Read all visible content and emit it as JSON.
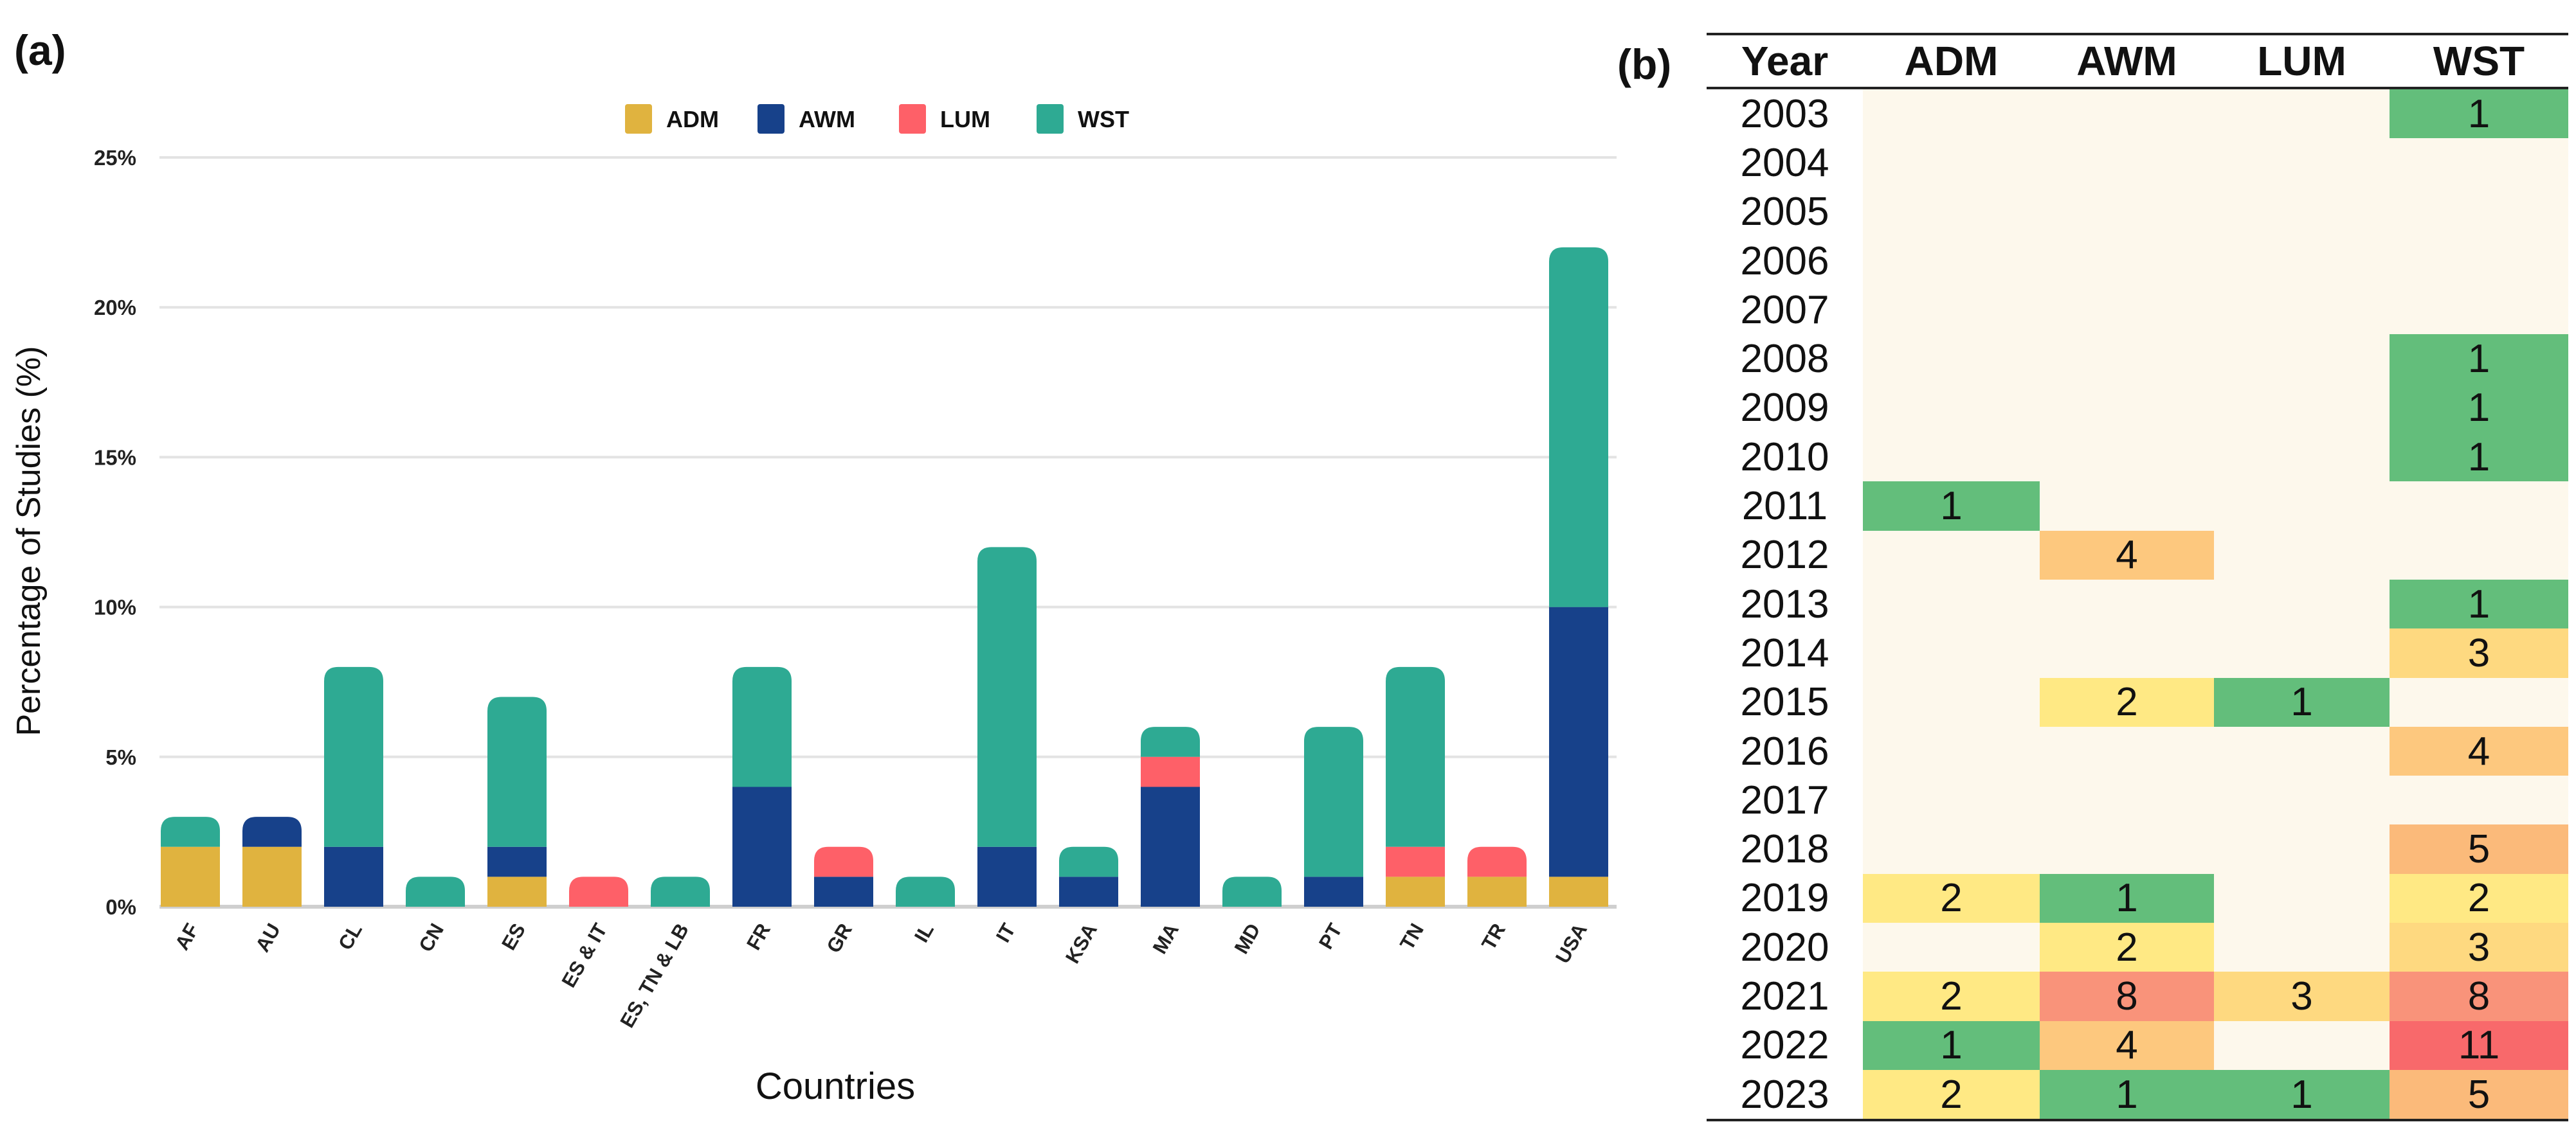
{
  "panel_a_label": "(a)",
  "panel_b_label": "(b)",
  "chart_data": [
    {
      "type": "bar",
      "stacked": true,
      "title": "",
      "xlabel": "Countries",
      "ylabel": "Percentage of Studies (%)",
      "ylim": [
        0,
        25
      ],
      "yticks": [
        "0%",
        "5%",
        "10%",
        "15%",
        "20%",
        "25%"
      ],
      "grid": true,
      "legend_position": "top",
      "categories": [
        "AF",
        "AU",
        "CL",
        "CN",
        "ES",
        "ES & IT",
        "ES, TN & LB",
        "FR",
        "GR",
        "IL",
        "IT",
        "KSA",
        "MA",
        "MD",
        "PT",
        "TN",
        "TR",
        "USA"
      ],
      "series": [
        {
          "name": "ADM",
          "color": "#e0b33f",
          "values": [
            2,
            2,
            0,
            0,
            1,
            0,
            0,
            0,
            0,
            0,
            0,
            0,
            0,
            0,
            0,
            1,
            1,
            1
          ]
        },
        {
          "name": "AWM",
          "color": "#17418a",
          "values": [
            0,
            1,
            2,
            0,
            1,
            0,
            0,
            4,
            1,
            0,
            2,
            1,
            4,
            0,
            1,
            0,
            0,
            9
          ]
        },
        {
          "name": "LUM",
          "color": "#fe6068",
          "values": [
            0,
            0,
            0,
            0,
            0,
            1,
            0,
            0,
            1,
            0,
            0,
            0,
            1,
            0,
            0,
            1,
            1,
            0
          ]
        },
        {
          "name": "WST",
          "color": "#2eaa93",
          "values": [
            1,
            0,
            6,
            1,
            5,
            0,
            1,
            4,
            0,
            1,
            10,
            1,
            1,
            1,
            5,
            6,
            0,
            12
          ]
        }
      ]
    },
    {
      "type": "heatmap",
      "columns": [
        "Year",
        "ADM",
        "AWM",
        "LUM",
        "WST"
      ],
      "rows": [
        [
          "2003",
          null,
          null,
          null,
          1
        ],
        [
          "2004",
          null,
          null,
          null,
          null
        ],
        [
          "2005",
          null,
          null,
          null,
          null
        ],
        [
          "2006",
          null,
          null,
          null,
          null
        ],
        [
          "2007",
          null,
          null,
          null,
          null
        ],
        [
          "2008",
          null,
          null,
          null,
          1
        ],
        [
          "2009",
          null,
          null,
          null,
          1
        ],
        [
          "2010",
          null,
          null,
          null,
          1
        ],
        [
          "2011",
          1,
          null,
          null,
          null
        ],
        [
          "2012",
          null,
          4,
          null,
          null
        ],
        [
          "2013",
          null,
          null,
          null,
          1
        ],
        [
          "2014",
          null,
          null,
          null,
          3
        ],
        [
          "2015",
          null,
          2,
          1,
          null
        ],
        [
          "2016",
          null,
          null,
          null,
          4
        ],
        [
          "2017",
          null,
          null,
          null,
          null
        ],
        [
          "2018",
          null,
          null,
          null,
          5
        ],
        [
          "2019",
          2,
          1,
          null,
          2
        ],
        [
          "2020",
          null,
          2,
          null,
          3
        ],
        [
          "2021",
          2,
          8,
          3,
          8
        ],
        [
          "2022",
          1,
          4,
          null,
          11
        ],
        [
          "2023",
          2,
          1,
          1,
          5
        ]
      ],
      "color_scale": {
        "empty": "#fdf8ec",
        "1": "#63be7b",
        "2": "#ffe984",
        "3": "#fed980",
        "4": "#fdc87e",
        "5": "#fbba7a",
        "8": "#f9937a",
        "11": "#f8696b"
      }
    }
  ]
}
